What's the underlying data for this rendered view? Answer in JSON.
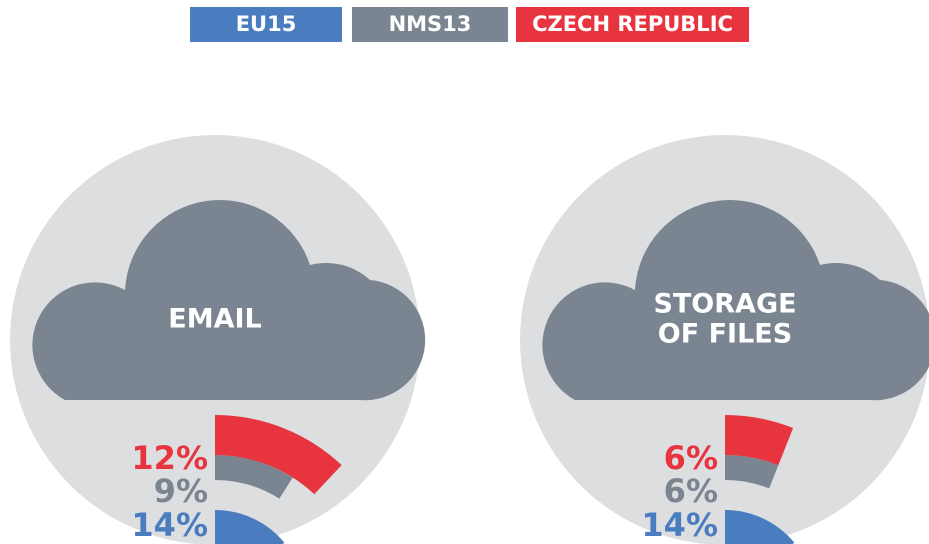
{
  "legend": [
    {
      "name": "EU15",
      "color": "#4a7cc0"
    },
    {
      "name": "NMS13",
      "color": "#7a8591"
    },
    {
      "name": "CZECH REPUBLIC",
      "color": "#e8343f"
    }
  ],
  "chart_data": [
    {
      "type": "radial_bar",
      "title_lines": [
        "EMAIL"
      ],
      "values": [
        14,
        9,
        12
      ],
      "value_labels": [
        "14%",
        "9%",
        "12%"
      ]
    },
    {
      "type": "radial_bar",
      "title_lines": [
        "STORAGE",
        "OF FILES"
      ],
      "values": [
        14,
        6,
        6
      ],
      "value_labels": [
        "14%",
        "6%",
        "6%"
      ]
    }
  ]
}
